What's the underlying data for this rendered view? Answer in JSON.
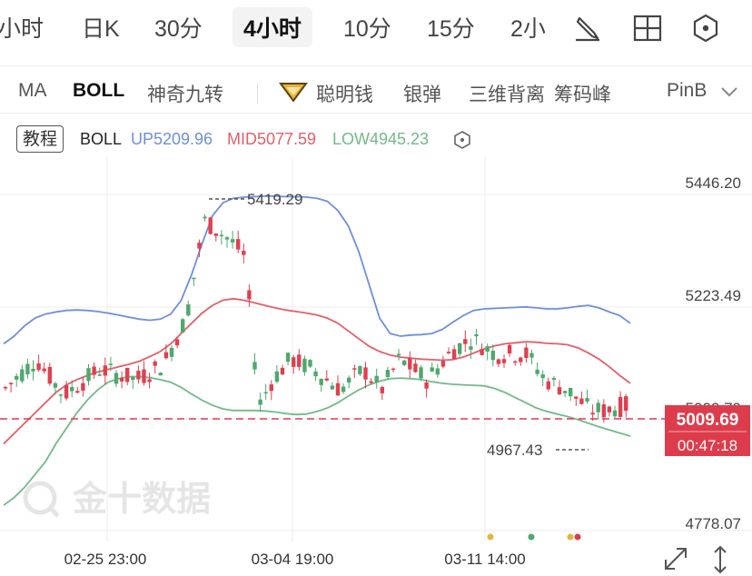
{
  "tabs": [
    "小时",
    "日K",
    "30分",
    "4小时",
    "10分",
    "15分",
    "2小"
  ],
  "active_tab": "4小时",
  "tool_icons": [
    "draw-pen-icon",
    "grid-layout-icon",
    "settings-hex-icon"
  ],
  "indicators": {
    "ma": "MA",
    "boll": "BOLL",
    "td": "神奇九转",
    "smart": "聪明钱",
    "silver": "银弹",
    "three": "三维背离",
    "chip": "筹码峰",
    "pin": "PinB"
  },
  "legend": {
    "tutorial": "教程",
    "name": "BOLL",
    "up": "UP5209.96",
    "mid": "MID5077.59",
    "low": "LOW4945.23"
  },
  "price_badge": {
    "price": "5009.69",
    "countdown": "00:47:18"
  },
  "annotations": {
    "high": "5419.29",
    "low": "4967.43"
  },
  "watermark": "金十数据",
  "colors": {
    "up_band": "#6f8fd8",
    "mid_band": "#e0606a",
    "low_band": "#73b98a",
    "bull": "#df4050",
    "bear": "#4fa86e",
    "badge": "#dd3c4c"
  },
  "chart_data": {
    "type": "candlestick",
    "title": "BOLL",
    "y_ticks": [
      "5446.20",
      "5223.49",
      "5000.79",
      "4778.07"
    ],
    "x_ticks": [
      "02-25 23:00",
      "03-04 19:00",
      "03-11 14:00"
    ],
    "ylim": [
      4778.07,
      5446.2
    ],
    "boll": {
      "upper": 5209.96,
      "middle": 5077.59,
      "lower": 4945.23
    },
    "last_price": 5009.69,
    "high_marker": 5419.29,
    "low_marker": 4967.43,
    "upper_band": [
      5130,
      5145,
      5165,
      5180,
      5188,
      5192,
      5195,
      5196,
      5195,
      5193,
      5190,
      5186,
      5182,
      5178,
      5176,
      5178,
      5188,
      5215,
      5265,
      5325,
      5380,
      5405,
      5414,
      5416,
      5417,
      5418,
      5418,
      5417,
      5417,
      5416,
      5414,
      5408,
      5390,
      5360,
      5310,
      5245,
      5180,
      5150,
      5145,
      5147,
      5148,
      5150,
      5158,
      5172,
      5185,
      5195,
      5198,
      5199,
      5200,
      5201,
      5202,
      5200,
      5198,
      5198,
      5200,
      5203,
      5205,
      5200,
      5192,
      5185,
      5170
    ],
    "mid_band": [
      4935,
      4955,
      4975,
      4995,
      5015,
      5035,
      5050,
      5060,
      5068,
      5075,
      5080,
      5085,
      5090,
      5096,
      5105,
      5115,
      5130,
      5150,
      5170,
      5190,
      5205,
      5215,
      5218,
      5215,
      5210,
      5205,
      5200,
      5196,
      5193,
      5190,
      5186,
      5180,
      5170,
      5155,
      5140,
      5125,
      5115,
      5108,
      5104,
      5102,
      5100,
      5099,
      5098,
      5099,
      5104,
      5112,
      5120,
      5126,
      5130,
      5132,
      5134,
      5133,
      5131,
      5130,
      5128,
      5122,
      5112,
      5100,
      5085,
      5068,
      5053
    ],
    "lower_band": [
      4815,
      4830,
      4850,
      4875,
      4900,
      4935,
      4965,
      4995,
      5020,
      5040,
      5055,
      5062,
      5066,
      5066,
      5064,
      5060,
      5055,
      5045,
      5032,
      5020,
      5010,
      5003,
      5000,
      5000,
      5000,
      4999,
      4997,
      4994,
      4992,
      4993,
      4998,
      5005,
      5015,
      5028,
      5040,
      5050,
      5057,
      5062,
      5063,
      5062,
      5060,
      5056,
      5053,
      5051,
      5050,
      5049,
      5048,
      5043,
      5035,
      5025,
      5015,
      5005,
      4998,
      4993,
      4988,
      4982,
      4975,
      4968,
      4962,
      4956,
      4950
    ]
  }
}
